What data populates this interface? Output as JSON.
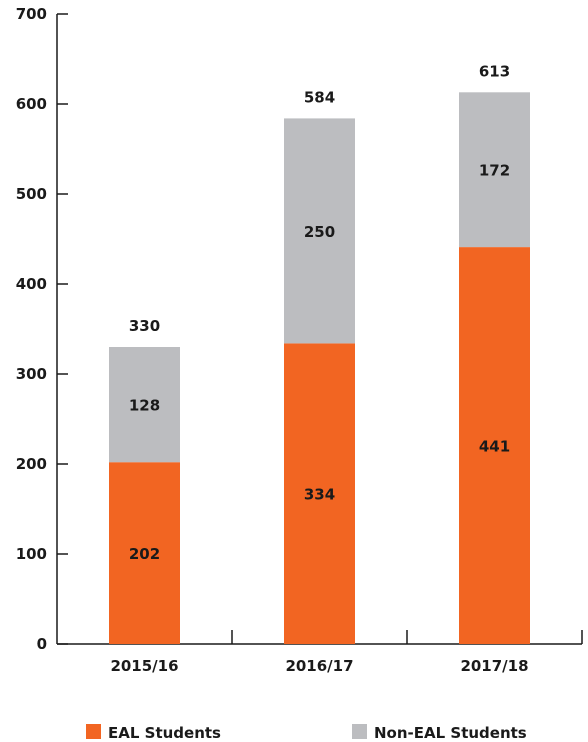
{
  "chart_data": {
    "type": "bar",
    "stacked": true,
    "categories": [
      "2015/16",
      "2016/17",
      "2017/18"
    ],
    "series": [
      {
        "name": "EAL Students",
        "values": [
          202,
          334,
          441
        ],
        "color": "#f26522"
      },
      {
        "name": "Non-EAL Students",
        "values": [
          128,
          250,
          172
        ],
        "color": "#bcbdc0"
      }
    ],
    "totals": [
      330,
      584,
      613
    ],
    "ylim": [
      0,
      700
    ],
    "yticks": [
      0,
      100,
      200,
      300,
      400,
      500,
      600,
      700
    ],
    "grid": false,
    "legend_position": "bottom",
    "value_labels": true
  }
}
